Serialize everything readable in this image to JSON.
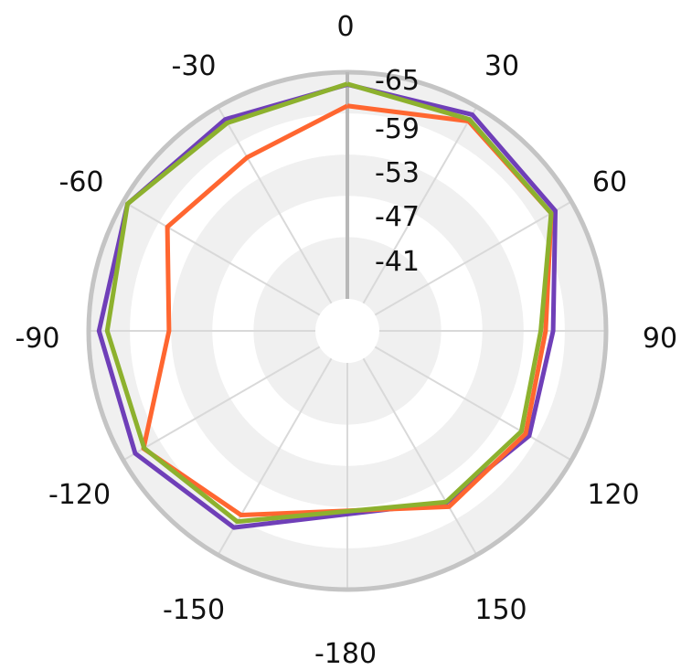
{
  "chart_data": {
    "type": "polar-line",
    "theta_unit": "degrees",
    "theta_direction": "clockwise",
    "theta_zero": "top",
    "angular_ticks": [
      "0",
      "30",
      "60",
      "90",
      "120",
      "150",
      "-180",
      "-150",
      "-120",
      "-90",
      "-60",
      "-30"
    ],
    "radial_ticks": [
      "-65",
      "-59",
      "-53",
      "-47",
      "-41"
    ],
    "rlim": [
      -35,
      -68
    ],
    "grid": true,
    "colors": {
      "series": [
        "#6f3fb8",
        "#ff6630",
        "#8db12e"
      ],
      "grid": "#d9d9d9",
      "band": "#f0f0f0",
      "border": "#c4c4c4",
      "axis": "#b8b8b8"
    },
    "series": [
      {
        "theta": [
          0,
          30,
          60,
          90,
          120,
          150,
          -150,
          -120,
          -90,
          -60,
          -30,
          0
        ],
        "values": [
          -66.2,
          -66.7,
          -65.3,
          -60.3,
          -60.9,
          -59.2,
          -63.4,
          -66.0,
          -66.5,
          -67.3,
          -65.9,
          -66.2
        ]
      },
      {
        "theta": [
          0,
          30,
          60,
          90,
          120,
          150,
          -150,
          -120,
          -90,
          -60,
          -30,
          0
        ],
        "values": [
          -63.1,
          -65.6,
          -64.6,
          -59.2,
          -60.3,
          -59.9,
          -61.3,
          -64.6,
          -56.3,
          -60.6,
          -59.5,
          -63.1
        ]
      },
      {
        "theta": [
          0,
          30,
          60,
          90,
          120,
          150,
          -150,
          -120,
          -90,
          -60,
          -30,
          0
        ],
        "values": [
          -66.3,
          -65.9,
          -64.6,
          -58.5,
          -59.6,
          -59.1,
          -62.4,
          -64.5,
          -65.3,
          -67.3,
          -65.3,
          -66.3
        ]
      }
    ]
  }
}
